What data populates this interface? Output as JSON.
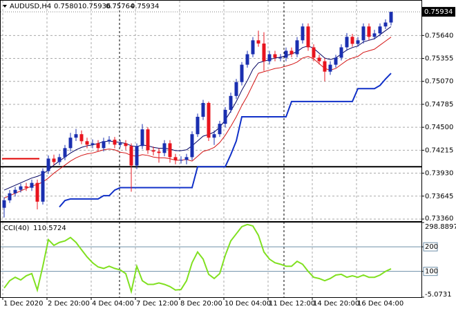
{
  "chart_data": [
    {
      "type": "candlestick",
      "title": "AUDUSD,H4",
      "categories": [
        "1 Dec 2020",
        null,
        null,
        null,
        null,
        null,
        null,
        null,
        "2 Dec 20:00",
        null,
        null,
        null,
        null,
        null,
        null,
        null,
        "4 Dec 04:00",
        null,
        null,
        null,
        null,
        null,
        null,
        null,
        "7 Dec 12:00",
        null,
        null,
        null,
        null,
        null,
        null,
        null,
        "8 Dec 20:00",
        null,
        null,
        null,
        null,
        null,
        null,
        null,
        "10 Dec 04:00",
        null,
        null,
        null,
        null,
        null,
        null,
        null,
        "11 Dec 12:00",
        null,
        null,
        null,
        null,
        null,
        null,
        null,
        "14 Dec 20:00",
        null,
        null,
        null,
        null,
        null,
        null,
        null,
        "16 Dec 04:00",
        null,
        null,
        null,
        null,
        null,
        null
      ],
      "open": [
        0.735,
        0.73593,
        0.7368,
        0.73723,
        0.73766,
        0.73749,
        0.73809,
        0.73576,
        0.73956,
        0.74111,
        0.74068,
        0.74129,
        0.74241,
        0.74371,
        0.74414,
        0.74327,
        0.74284,
        0.74301,
        0.74241,
        0.74327,
        0.74345,
        0.74284,
        0.74301,
        0.74267,
        0.74025,
        0.74267,
        0.74474,
        0.74215,
        0.74198,
        0.74181,
        0.74301,
        0.74129,
        0.74094,
        0.74094,
        0.74129,
        0.74414,
        0.7463,
        0.74802,
        0.74371,
        0.74414,
        0.74543,
        0.74716,
        0.74889,
        0.75061,
        0.75277,
        0.75407,
        0.7558,
        0.7554,
        0.7532,
        0.75407,
        0.75364,
        0.75364,
        0.7545,
        0.75407,
        0.7558,
        0.75752,
        0.75493,
        0.75364,
        0.7532,
        0.75191,
        0.75277,
        0.75364,
        0.75493,
        0.75623,
        0.75536,
        0.7558,
        0.75752,
        0.75623,
        0.75666,
        0.75752,
        0.75801
      ],
      "high": [
        0.7363,
        0.7372,
        0.7376,
        0.738,
        0.7381,
        0.7385,
        0.7385,
        0.7399,
        0.7415,
        0.7416,
        0.7417,
        0.7428,
        0.7443,
        0.7448,
        0.7446,
        0.7437,
        0.7435,
        0.7434,
        0.7437,
        0.7439,
        0.7438,
        0.7434,
        0.7434,
        0.743,
        0.743,
        0.7454,
        0.745,
        0.7426,
        0.7424,
        0.7434,
        0.7434,
        0.7417,
        0.7414,
        0.7417,
        0.7445,
        0.7467,
        0.7484,
        0.7482,
        0.7446,
        0.7458,
        0.7475,
        0.7493,
        0.751,
        0.7531,
        0.7545,
        0.7562,
        0.757,
        0.7568,
        0.7545,
        0.7545,
        0.7541,
        0.7549,
        0.7549,
        0.7562,
        0.7579,
        0.7579,
        0.7553,
        0.754,
        0.7536,
        0.7532,
        0.754,
        0.7553,
        0.7567,
        0.7566,
        0.7562,
        0.7579,
        0.7579,
        0.7571,
        0.7579,
        0.7584,
        0.75936
      ],
      "low": [
        0.7338,
        0.7356,
        0.7364,
        0.7369,
        0.7371,
        0.7371,
        0.7348,
        0.7354,
        0.7392,
        0.7403,
        0.7403,
        0.7409,
        0.742,
        0.7433,
        0.7429,
        0.7424,
        0.7424,
        0.742,
        0.742,
        0.7429,
        0.7424,
        0.7425,
        0.7422,
        0.737,
        0.7398,
        0.7423,
        0.7417,
        0.7415,
        0.7406,
        0.7414,
        0.7406,
        0.7404,
        0.7405,
        0.7404,
        0.7409,
        0.7438,
        0.7459,
        0.7433,
        0.7428,
        0.7438,
        0.745,
        0.7468,
        0.7485,
        0.7502,
        0.7524,
        0.7537,
        0.755,
        0.752,
        0.7528,
        0.7532,
        0.7532,
        0.7532,
        0.7537,
        0.7537,
        0.7554,
        0.7545,
        0.7532,
        0.7528,
        0.7507,
        0.7515,
        0.7524,
        0.7533,
        0.7545,
        0.755,
        0.755,
        0.7554,
        0.7558,
        0.7559,
        0.7563,
        0.7572,
        0.75764
      ],
      "close": [
        0.73593,
        0.7368,
        0.73723,
        0.73766,
        0.73749,
        0.73809,
        0.73576,
        0.73956,
        0.74111,
        0.74068,
        0.74129,
        0.74241,
        0.74371,
        0.74414,
        0.74327,
        0.74284,
        0.74301,
        0.74241,
        0.74327,
        0.74345,
        0.74284,
        0.74301,
        0.74267,
        0.74025,
        0.74267,
        0.74474,
        0.74215,
        0.74198,
        0.74181,
        0.74301,
        0.74129,
        0.74094,
        0.74094,
        0.74129,
        0.74414,
        0.7463,
        0.74802,
        0.74371,
        0.74414,
        0.74543,
        0.74716,
        0.74889,
        0.75061,
        0.75277,
        0.75407,
        0.7558,
        0.7554,
        0.7532,
        0.75407,
        0.75364,
        0.75364,
        0.7545,
        0.75407,
        0.7558,
        0.75752,
        0.75493,
        0.75364,
        0.7532,
        0.75191,
        0.75277,
        0.75364,
        0.75493,
        0.75623,
        0.75536,
        0.7558,
        0.75752,
        0.75623,
        0.75666,
        0.75752,
        0.75801,
        0.75934
      ],
      "up_color": "#1a2fb0",
      "down_color": "#e8141e",
      "lines": [
        {
          "color": "#000060",
          "width": 1,
          "values": [
            0.7372,
            0.7375,
            0.7378,
            0.7381,
            0.7384,
            0.7387,
            0.7389,
            0.7392,
            0.7397,
            0.7403,
            0.7408,
            0.7413,
            0.7418,
            0.7422,
            0.7425,
            0.7427,
            0.7428,
            0.743,
            0.7432,
            0.7433,
            0.7432,
            0.7431,
            0.743,
            0.7427,
            0.7426,
            0.7428,
            0.7427,
            0.7425,
            0.7424,
            0.7424,
            0.7423,
            0.7421,
            0.7421,
            0.7422,
            0.7427,
            0.7433,
            0.7439,
            0.7441,
            0.7444,
            0.745,
            0.7459,
            0.747,
            0.7482,
            0.7496,
            0.7508,
            0.7522,
            0.753,
            0.7532,
            0.7534,
            0.7536,
            0.7537,
            0.7539,
            0.7541,
            0.7544,
            0.7549,
            0.7551,
            0.7548,
            0.7542,
            0.7536,
            0.7534,
            0.7536,
            0.7541,
            0.7546,
            0.7549,
            0.7551,
            0.7556,
            0.7558,
            0.756,
            0.7565,
            0.757,
            0.7575
          ]
        },
        {
          "color": "#d41414",
          "width": 1,
          "values": [
            0.7362,
            0.7365,
            0.7368,
            0.7371,
            0.7374,
            0.7377,
            0.7379,
            0.7382,
            0.7387,
            0.7393,
            0.7398,
            0.7403,
            0.7408,
            0.7412,
            0.7415,
            0.7417,
            0.7418,
            0.742,
            0.7422,
            0.7423,
            0.7422,
            0.7419,
            0.7418,
            0.7415,
            0.7414,
            0.7416,
            0.7415,
            0.7413,
            0.7412,
            0.7412,
            0.7411,
            0.7409,
            0.7409,
            0.741,
            0.7408,
            0.7414,
            0.742,
            0.7422,
            0.7425,
            0.7431,
            0.744,
            0.7451,
            0.7463,
            0.7477,
            0.7489,
            0.7503,
            0.7517,
            0.7519,
            0.7521,
            0.7523,
            0.7524,
            0.7526,
            0.7528,
            0.7531,
            0.7536,
            0.7538,
            0.7535,
            0.7529,
            0.7523,
            0.7521,
            0.7523,
            0.7528,
            0.7533,
            0.7536,
            0.7538,
            0.7543,
            0.7545,
            0.7547,
            0.7552,
            0.7557,
            0.7562
          ]
        },
        {
          "color": "#1030c8",
          "width": 2,
          "values": [
            null,
            null,
            null,
            null,
            null,
            null,
            null,
            null,
            null,
            null,
            0.7351,
            0.7359,
            0.7361,
            0.7361,
            0.7361,
            0.7361,
            0.7361,
            0.7361,
            0.7365,
            0.7365,
            0.7372,
            0.7375,
            0.7375,
            0.7375,
            0.7375,
            0.7375,
            0.7375,
            0.7375,
            0.7375,
            0.7375,
            0.7375,
            0.7375,
            0.7375,
            0.7375,
            0.7375,
            0.7401,
            0.7401,
            0.7401,
            0.7401,
            0.7401,
            0.7401,
            0.7416,
            0.7433,
            0.7463,
            0.7463,
            0.7463,
            0.7463,
            0.7463,
            0.7463,
            0.7463,
            0.7463,
            0.7463,
            0.7482,
            0.7482,
            0.7482,
            0.7482,
            0.7482,
            0.7482,
            0.7482,
            0.7482,
            0.7482,
            0.7482,
            0.7482,
            0.7482,
            0.7498,
            0.7498,
            0.7498,
            0.7498,
            0.7502,
            0.751,
            0.7517
          ]
        }
      ],
      "levels": [
        {
          "value": 0.7401,
          "color": "#000000"
        },
        {
          "value": 0.7411,
          "color": "#e00000",
          "span": [
            0,
            6
          ]
        }
      ],
      "ylim": [
        0.73334,
        0.76072
      ],
      "yticks": [
        {
          "value": 0.7564,
          "label": "0.75640"
        },
        {
          "value": 0.75355,
          "label": "0.75355"
        },
        {
          "value": 0.7507,
          "label": "0.75070"
        },
        {
          "value": 0.74785,
          "label": "0.74785"
        },
        {
          "value": 0.745,
          "label": "0.74500"
        },
        {
          "value": 0.74215,
          "label": "0.74215"
        },
        {
          "value": 0.7393,
          "label": "0.73930"
        },
        {
          "value": 0.73645,
          "label": "0.73645"
        },
        {
          "value": 0.7336,
          "label": "0.73360"
        }
      ],
      "grid": true
    },
    {
      "type": "line",
      "title": "CCI(40)",
      "color": "#80e020",
      "values": [
        32,
        62,
        76,
        65,
        82,
        91,
        24,
        121,
        229,
        206,
        218,
        224,
        238,
        218,
        188,
        159,
        135,
        118,
        112,
        121,
        112,
        106,
        91,
        18,
        121,
        62,
        47,
        47,
        53,
        47,
        38,
        24,
        26,
        62,
        135,
        179,
        150,
        88,
        71,
        91,
        165,
        224,
        253,
        282,
        291,
        285,
        247,
        179,
        150,
        135,
        129,
        121,
        121,
        141,
        129,
        100,
        76,
        71,
        62,
        71,
        85,
        88,
        76,
        82,
        76,
        85,
        76,
        76,
        85,
        100,
        110.5724
      ],
      "levels": [
        200,
        100
      ],
      "ylim": [
        -5.0731,
        298.8897
      ],
      "yticks": [
        298.8897,
        200,
        100,
        -5.0731
      ]
    }
  ]
}
